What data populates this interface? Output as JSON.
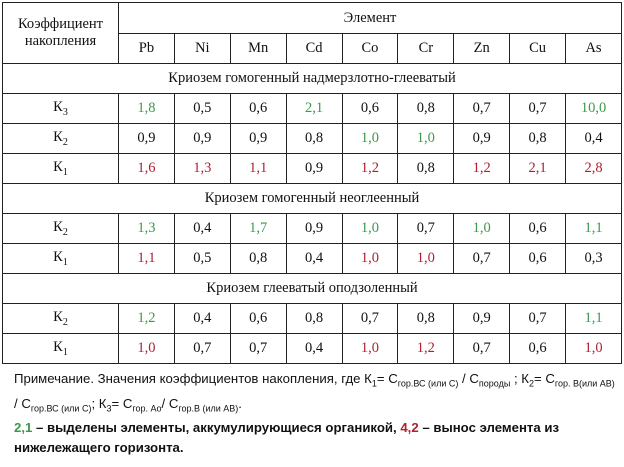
{
  "header": {
    "coef_label": "Коэффициент накопления",
    "element_label": "Элемент",
    "elements": [
      "Pb",
      "Ni",
      "Mn",
      "Cd",
      "Co",
      "Cr",
      "Zn",
      "Cu",
      "As"
    ]
  },
  "colors": {
    "accumulate": "#3a9a4a",
    "removal": "#b02030"
  },
  "sections": [
    {
      "title": "Криозем гомогенный надмерзлотно-глееватый",
      "rows": [
        {
          "label": "К",
          "sub": "3",
          "cells": [
            {
              "v": "1,8",
              "c": "g"
            },
            {
              "v": "0,5",
              "c": ""
            },
            {
              "v": "0,6",
              "c": ""
            },
            {
              "v": "2,1",
              "c": "g"
            },
            {
              "v": "0,6",
              "c": ""
            },
            {
              "v": "0,8",
              "c": ""
            },
            {
              "v": "0,7",
              "c": ""
            },
            {
              "v": "0,7",
              "c": ""
            },
            {
              "v": "10,0",
              "c": "g"
            }
          ]
        },
        {
          "label": "К",
          "sub": "2",
          "cells": [
            {
              "v": "0,9",
              "c": ""
            },
            {
              "v": "0,9",
              "c": ""
            },
            {
              "v": "0,9",
              "c": ""
            },
            {
              "v": "0,8",
              "c": ""
            },
            {
              "v": "1,0",
              "c": "g"
            },
            {
              "v": "1,0",
              "c": "g"
            },
            {
              "v": "0,9",
              "c": ""
            },
            {
              "v": "0,8",
              "c": ""
            },
            {
              "v": "0,4",
              "c": ""
            }
          ]
        },
        {
          "label": "К",
          "sub": "1",
          "cells": [
            {
              "v": "1,6",
              "c": "r"
            },
            {
              "v": "1,3",
              "c": "r"
            },
            {
              "v": "1,1",
              "c": "r"
            },
            {
              "v": "0,9",
              "c": ""
            },
            {
              "v": "1,2",
              "c": "r"
            },
            {
              "v": "0,8",
              "c": ""
            },
            {
              "v": "1,2",
              "c": "r"
            },
            {
              "v": "2,1",
              "c": "r"
            },
            {
              "v": "2,8",
              "c": "r"
            }
          ]
        }
      ]
    },
    {
      "title": "Криозем гомогенный неоглеенный",
      "rows": [
        {
          "label": "К",
          "sub": "2",
          "cells": [
            {
              "v": "1,3",
              "c": "g"
            },
            {
              "v": "0,4",
              "c": ""
            },
            {
              "v": "1,7",
              "c": "g"
            },
            {
              "v": "0,9",
              "c": ""
            },
            {
              "v": "1,0",
              "c": "g"
            },
            {
              "v": "0,7",
              "c": ""
            },
            {
              "v": "1,0",
              "c": "g"
            },
            {
              "v": "0,6",
              "c": ""
            },
            {
              "v": "1,1",
              "c": "g"
            }
          ]
        },
        {
          "label": "К",
          "sub": "1",
          "cells": [
            {
              "v": "1,1",
              "c": "r"
            },
            {
              "v": "0,5",
              "c": ""
            },
            {
              "v": "0,8",
              "c": ""
            },
            {
              "v": "0,4",
              "c": ""
            },
            {
              "v": "1,0",
              "c": "r"
            },
            {
              "v": "1,0",
              "c": "r"
            },
            {
              "v": "0,7",
              "c": ""
            },
            {
              "v": "0,6",
              "c": ""
            },
            {
              "v": "0,3",
              "c": ""
            }
          ]
        }
      ]
    },
    {
      "title": "Криозем  глееватый оподзоленный",
      "rows": [
        {
          "label": "К",
          "sub": "2",
          "cells": [
            {
              "v": "1,2",
              "c": "g"
            },
            {
              "v": "0,4",
              "c": ""
            },
            {
              "v": "0,6",
              "c": ""
            },
            {
              "v": "0,8",
              "c": ""
            },
            {
              "v": "0,7",
              "c": ""
            },
            {
              "v": "0,8",
              "c": ""
            },
            {
              "v": "0,9",
              "c": ""
            },
            {
              "v": "0,7",
              "c": ""
            },
            {
              "v": "1,1",
              "c": "g"
            }
          ]
        },
        {
          "label": "К",
          "sub": "1",
          "cells": [
            {
              "v": "1,0",
              "c": "r"
            },
            {
              "v": "0,7",
              "c": ""
            },
            {
              "v": "0,7",
              "c": ""
            },
            {
              "v": "0,4",
              "c": ""
            },
            {
              "v": "1,0",
              "c": "r"
            },
            {
              "v": "1,2",
              "c": "r"
            },
            {
              "v": "0,7",
              "c": ""
            },
            {
              "v": "0,6",
              "c": ""
            },
            {
              "v": "1,0",
              "c": "r"
            }
          ]
        }
      ]
    }
  ],
  "note": {
    "prefix": "Примечание. Значения коэффициентов накопления, где К",
    "k1_sub": "1",
    "eq1": "= С",
    "eq1_sub": "гор.ВС (или С)",
    "slash1": " / С",
    "slash1_sub": "породы",
    "sep1": " ; К",
    "k2_sub": "2",
    "eq2": "= С",
    "eq2_sub": "гор. В(или АВ)",
    "slash2": " / С",
    "slash2_sub": "гор.ВС (или С)",
    "sep2": "; К",
    "k3_sub": "3",
    "eq3": "=  С",
    "eq3_sub": "гор. Ао",
    "slash3": "/ С",
    "slash3_sub": "гор.В (или АВ)",
    "end": ".",
    "legend_green_value": "2,1",
    "legend_green_text": " – выделены элементы, аккумулирующиеся органикой, ",
    "legend_red_value": "4,2",
    "legend_red_text": " – вынос элемента из нижележащего горизонта."
  }
}
